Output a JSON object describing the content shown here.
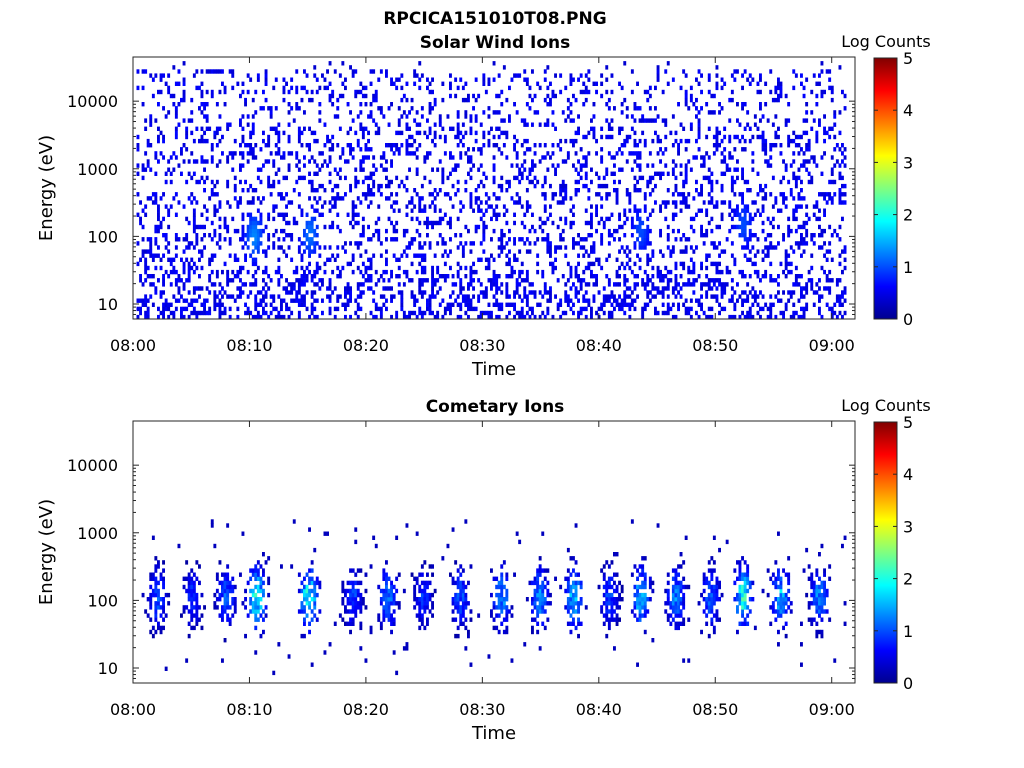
{
  "figure": {
    "title": "RPCICA151010T08.PNG"
  },
  "chart_data": [
    {
      "type": "heatmap",
      "title": "Solar Wind Ions",
      "xlabel": "Time",
      "ylabel": "Energy (eV)",
      "xticks": [
        "08:00",
        "08:10",
        "08:20",
        "08:30",
        "08:40",
        "08:50",
        "09:00"
      ],
      "yticks": [
        "10",
        "100",
        "1000",
        "10000"
      ],
      "y_scale": "log",
      "xlim_minutes": [
        0,
        62
      ],
      "ylim": [
        6,
        45000
      ],
      "colorbar": {
        "label": "Log Counts",
        "ticks": [
          "0",
          "1",
          "2",
          "3",
          "4",
          "5"
        ],
        "range": [
          0,
          5
        ],
        "colormap": "jet"
      },
      "features": {
        "background_level": 0.3,
        "background_energy_range": [
          6,
          30000
        ],
        "blobs": [
          {
            "t_minutes": 10.3,
            "energy": 100,
            "level": 0.9
          },
          {
            "t_minutes": 15.1,
            "energy": 110,
            "level": 0.8
          },
          {
            "t_minutes": 43.5,
            "energy": 120,
            "level": 0.6
          },
          {
            "t_minutes": 52.3,
            "energy": 150,
            "level": 0.6
          }
        ]
      }
    },
    {
      "type": "heatmap",
      "title": "Cometary Ions",
      "xlabel": "Time",
      "ylabel": "Energy (eV)",
      "xticks": [
        "08:00",
        "08:10",
        "08:20",
        "08:30",
        "08:40",
        "08:50",
        "09:00"
      ],
      "yticks": [
        "10",
        "100",
        "1000",
        "10000"
      ],
      "y_scale": "log",
      "xlim_minutes": [
        0,
        62
      ],
      "ylim": [
        6,
        45000
      ],
      "colorbar": {
        "label": "Log Counts",
        "ticks": [
          "0",
          "1",
          "2",
          "3",
          "4",
          "5"
        ],
        "range": [
          0,
          5
        ],
        "colormap": "jet"
      },
      "features": {
        "bursts": [
          {
            "t_minutes": 2.0,
            "level": 1.0
          },
          {
            "t_minutes": 5.0,
            "level": 0.8
          },
          {
            "t_minutes": 7.9,
            "level": 1.0
          },
          {
            "t_minutes": 10.5,
            "level": 1.9
          },
          {
            "t_minutes": 15.0,
            "level": 2.0
          },
          {
            "t_minutes": 18.8,
            "level": 0.9
          },
          {
            "t_minutes": 21.8,
            "level": 1.2
          },
          {
            "t_minutes": 24.8,
            "level": 0.8
          },
          {
            "t_minutes": 28.0,
            "level": 1.0
          },
          {
            "t_minutes": 31.5,
            "level": 1.3
          },
          {
            "t_minutes": 34.8,
            "level": 1.3
          },
          {
            "t_minutes": 37.8,
            "level": 1.7
          },
          {
            "t_minutes": 40.8,
            "level": 0.9
          },
          {
            "t_minutes": 43.5,
            "level": 1.6
          },
          {
            "t_minutes": 46.5,
            "level": 1.2
          },
          {
            "t_minutes": 49.5,
            "level": 1.1
          },
          {
            "t_minutes": 52.3,
            "level": 2.0
          },
          {
            "t_minutes": 55.5,
            "level": 1.6
          },
          {
            "t_minutes": 58.8,
            "level": 1.2
          }
        ],
        "burst_energy_center": 110,
        "burst_energy_range": [
          15,
          1500
        ]
      }
    }
  ]
}
